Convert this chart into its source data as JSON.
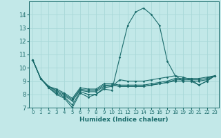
{
  "xlabel": "Humidex (Indice chaleur)",
  "bg_color": "#c2e8e8",
  "line_color": "#1a6b6b",
  "grid_color": "#a8d8d8",
  "xlim": [
    -0.5,
    23.5
  ],
  "ylim": [
    7,
    15
  ],
  "yticks": [
    7,
    8,
    9,
    10,
    11,
    12,
    13,
    14
  ],
  "xticks": [
    0,
    1,
    2,
    3,
    4,
    5,
    6,
    7,
    8,
    9,
    10,
    11,
    12,
    13,
    14,
    15,
    16,
    17,
    18,
    19,
    20,
    21,
    22,
    23
  ],
  "series": [
    [
      10.6,
      9.2,
      8.5,
      8.0,
      7.7,
      7.0,
      8.1,
      7.8,
      8.0,
      8.4,
      8.3,
      10.8,
      13.2,
      14.2,
      14.5,
      14.0,
      13.2,
      10.5,
      9.4,
      9.0,
      9.0,
      8.7,
      9.0,
      9.4
    ],
    [
      10.6,
      9.2,
      8.5,
      8.1,
      7.8,
      7.2,
      8.2,
      8.0,
      8.0,
      8.5,
      8.6,
      9.1,
      9.0,
      9.0,
      9.0,
      9.1,
      9.2,
      9.3,
      9.4,
      9.3,
      9.1,
      8.7,
      9.0,
      9.4
    ],
    [
      10.6,
      9.2,
      8.6,
      8.2,
      7.9,
      7.5,
      8.3,
      8.2,
      8.2,
      8.6,
      8.7,
      8.6,
      8.6,
      8.6,
      8.6,
      8.7,
      8.8,
      8.9,
      9.0,
      9.0,
      9.0,
      9.0,
      9.1,
      9.4
    ],
    [
      10.6,
      9.2,
      8.6,
      8.3,
      8.0,
      7.6,
      8.4,
      8.3,
      8.3,
      8.7,
      8.7,
      8.6,
      8.6,
      8.6,
      8.6,
      8.7,
      8.8,
      8.9,
      9.1,
      9.1,
      9.1,
      9.1,
      9.2,
      9.4
    ],
    [
      10.6,
      9.2,
      8.6,
      8.4,
      8.1,
      7.7,
      8.5,
      8.4,
      8.4,
      8.8,
      8.8,
      8.7,
      8.7,
      8.7,
      8.7,
      8.8,
      8.9,
      9.0,
      9.2,
      9.2,
      9.2,
      9.2,
      9.3,
      9.4
    ]
  ]
}
